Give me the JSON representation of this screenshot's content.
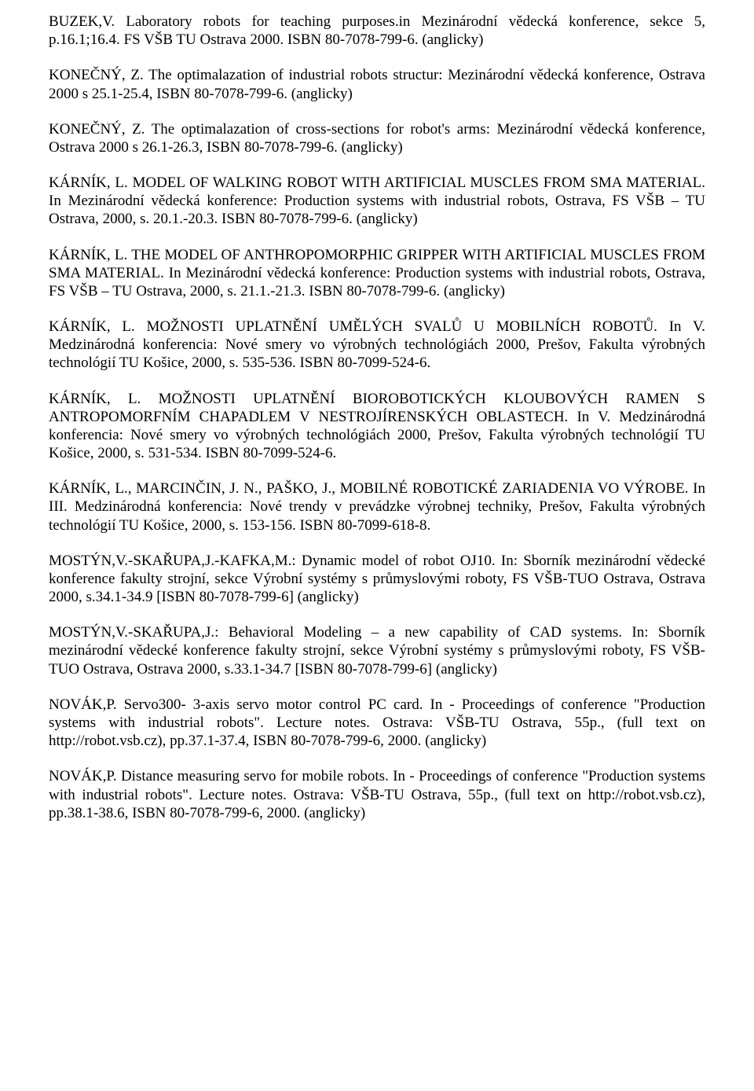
{
  "refs": [
    "BUZEK,V. Laboratory robots for teaching purposes.in Mezinárodní vědecká konference, sekce 5, p.16.1;16.4. FS VŠB TU Ostrava 2000. ISBN 80-7078-799-6. (anglicky)",
    "KONEČNÝ, Z. The optimalazation of industrial robots structur: Mezinárodní vědecká konference, Ostrava 2000 s 25.1-25.4, ISBN 80-7078-799-6. (anglicky)",
    "KONEČNÝ, Z. The optimalazation of cross-sections for robot's arms: Mezinárodní vědecká konference, Ostrava 2000 s 26.1-26.3, ISBN 80-7078-799-6. (anglicky)",
    "KÁRNÍK, L. MODEL OF WALKING ROBOT WITH ARTIFICIAL MUSCLES FROM SMA MATERIAL. In Mezinárodní vědecká konference: Production systems with industrial robots, Ostrava, FS VŠB – TU Ostrava, 2000, s. 20.1.-20.3. ISBN 80-7078-799-6. (anglicky)",
    "KÁRNÍK, L. THE MODEL OF ANTHROPOMORPHIC GRIPPER WITH ARTIFICIAL MUSCLES FROM SMA MATERIAL. In Mezinárodní vědecká konference: Production systems with industrial robots, Ostrava, FS VŠB – TU Ostrava, 2000, s. 21.1.-21.3. ISBN 80-7078-799-6. (anglicky)",
    "KÁRNÍK, L. MOŽNOSTI UPLATNĚNÍ UMĚLÝCH SVALŮ U MOBILNÍCH ROBOTŮ. In V. Medzinárodná konferencia: Nové smery vo výrobných technológiách 2000, Prešov, Fakulta výrobných technológií TU Košice, 2000, s. 535-536. ISBN 80-7099-524-6.",
    "KÁRNÍK, L. MOŽNOSTI UPLATNĚNÍ BIOROBOTICKÝCH KLOUBOVÝCH RAMEN S ANTROPOMORFNÍM CHAPADLEM V NESTROJÍRENSKÝCH OBLASTECH. In V. Medzinárodná konferencia: Nové smery vo výrobných technológiách 2000, Prešov, Fakulta výrobných technológií TU Košice, 2000, s. 531-534. ISBN 80-7099-524-6.",
    "KÁRNÍK, L., MARCINČIN, J. N., PAŠKO, J., MOBILNÉ ROBOTICKÉ ZARIADENIA VO VÝROBE. In III. Medzinárodná konferencia: Nové trendy v prevádzke výrobnej techniky, Prešov, Fakulta výrobných technológií TU Košice, 2000, s. 153-156. ISBN 80-7099-618-8.",
    "MOSTÝN,V.-SKAŘUPA,J.-KAFKA,M.: Dynamic model of robot OJ10. In: Sborník mezinárodní vědecké konference fakulty strojní, sekce Výrobní systémy s průmyslovými roboty, FS VŠB-TUO Ostrava, Ostrava 2000, s.34.1-34.9 [ISBN 80-7078-799-6] (anglicky)",
    "MOSTÝN,V.-SKAŘUPA,J.: Behavioral Modeling – a new capability of CAD systems. In: Sborník mezinárodní vědecké konference fakulty strojní, sekce Výrobní systémy s průmyslovými roboty, FS VŠB-TUO Ostrava, Ostrava 2000, s.33.1-34.7 [ISBN 80-7078-799-6] (anglicky)",
    "NOVÁK,P. Servo300- 3-axis servo motor control PC card. In - Proceedings of conference \"Production systems with industrial robots\". Lecture notes. Ostrava: VŠB-TU Ostrava, 55p., (full text on http://robot.vsb.cz), pp.37.1-37.4, ISBN 80-7078-799-6, 2000. (anglicky)",
    "NOVÁK,P. Distance measuring servo for mobile robots. In - Proceedings of conference \"Production systems with industrial robots\". Lecture notes. Ostrava: VŠB-TU Ostrava, 55p., (full text on http://robot.vsb.cz), pp.38.1-38.6, ISBN 80-7078-799-6, 2000. (anglicky)"
  ]
}
